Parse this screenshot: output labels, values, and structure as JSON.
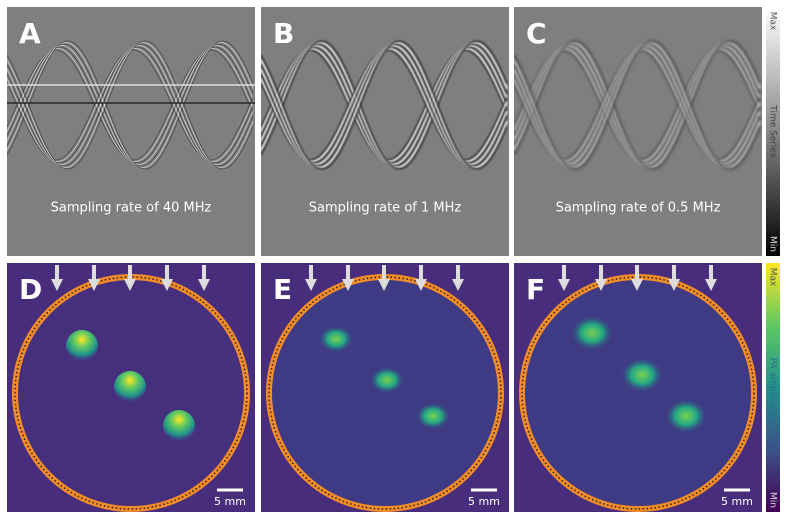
{
  "panels": [
    {
      "letter": "A",
      "caption": "Sampling rate of 40 MHz"
    },
    {
      "letter": "B",
      "caption": "Sampling rate of 1 MHz"
    },
    {
      "letter": "C",
      "caption": "Sampling rate of 0.5 MHz"
    },
    {
      "letter": "D",
      "scale_bar": "5 mm"
    },
    {
      "letter": "E",
      "scale_bar": "5 mm"
    },
    {
      "letter": "F",
      "scale_bar": "5 mm"
    }
  ],
  "colorbars": [
    {
      "max": "Max",
      "label": "Time Series",
      "min": "Min"
    },
    {
      "max": "Max",
      "label": "PA amplitude",
      "min": "Min"
    }
  ]
}
